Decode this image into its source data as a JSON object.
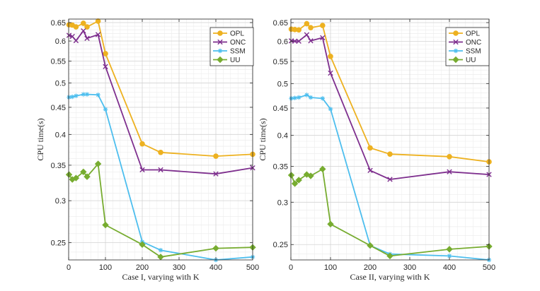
{
  "chart_data": [
    {
      "type": "line",
      "xlabel": "Case I, varying with K",
      "ylabel": "CPU time(s)",
      "y_scale": "log",
      "xlim": [
        0,
        500
      ],
      "ylim": [
        0.232,
        0.66
      ],
      "xticks": [
        "0",
        "100",
        "200",
        "300",
        "400",
        "500"
      ],
      "xtick_values": [
        0,
        100,
        200,
        300,
        400,
        500
      ],
      "yticks": [
        "0.25",
        "0.3",
        "0.35",
        "0.4",
        "0.45",
        "0.5",
        "0.55",
        "0.6",
        "0.65"
      ],
      "ytick_values": [
        0.25,
        0.3,
        0.35,
        0.4,
        0.45,
        0.5,
        0.55,
        0.6,
        0.65
      ],
      "grid": true,
      "legend_position": "top-right",
      "series": [
        {
          "name": "OPL",
          "color": "#EDB120",
          "marker": "circle",
          "x": [
            1,
            10,
            20,
            40,
            50,
            80,
            100,
            200,
            250,
            400,
            500
          ],
          "y": [
            0.644,
            0.643,
            0.638,
            0.648,
            0.638,
            0.654,
            0.568,
            0.384,
            0.37,
            0.364,
            0.367
          ]
        },
        {
          "name": "ONC",
          "color": "#7E2F8E",
          "marker": "x",
          "x": [
            1,
            10,
            20,
            40,
            50,
            80,
            100,
            200,
            250,
            400,
            500
          ],
          "y": [
            0.615,
            0.612,
            0.601,
            0.627,
            0.607,
            0.617,
            0.537,
            0.343,
            0.343,
            0.337,
            0.346
          ]
        },
        {
          "name": "SSM",
          "color": "#4DBEEE",
          "marker": "asterisk",
          "x": [
            1,
            10,
            20,
            40,
            50,
            80,
            100,
            200,
            250,
            400,
            500
          ],
          "y": [
            0.47,
            0.471,
            0.473,
            0.476,
            0.476,
            0.475,
            0.446,
            0.251,
            0.242,
            0.232,
            0.235
          ]
        },
        {
          "name": "UU",
          "color": "#77AC30",
          "marker": "diamond",
          "x": [
            1,
            10,
            20,
            40,
            50,
            80,
            100,
            200,
            250,
            400,
            500
          ],
          "y": [
            0.336,
            0.329,
            0.331,
            0.34,
            0.333,
            0.352,
            0.27,
            0.248,
            0.235,
            0.244,
            0.245
          ]
        }
      ]
    },
    {
      "type": "line",
      "xlabel": "Case II, varying with K",
      "ylabel": "CPU time(s)",
      "y_scale": "log",
      "xlim": [
        0,
        500
      ],
      "ylim": [
        0.234,
        0.66
      ],
      "xticks": [
        "0",
        "100",
        "200",
        "300",
        "400",
        "500"
      ],
      "xtick_values": [
        0,
        100,
        200,
        300,
        400,
        500
      ],
      "yticks": [
        "0.25",
        "0.3",
        "0.35",
        "0.4",
        "0.45",
        "0.5",
        "0.55",
        "0.6",
        "0.65"
      ],
      "ytick_values": [
        0.25,
        0.3,
        0.35,
        0.4,
        0.45,
        0.5,
        0.55,
        0.6,
        0.65
      ],
      "grid": true,
      "legend_position": "top-right",
      "series": [
        {
          "name": "OPL",
          "color": "#EDB120",
          "marker": "circle",
          "x": [
            1,
            10,
            20,
            40,
            50,
            80,
            100,
            200,
            250,
            400,
            500
          ],
          "y": [
            0.632,
            0.631,
            0.63,
            0.647,
            0.636,
            0.642,
            0.562,
            0.379,
            0.369,
            0.365,
            0.357
          ]
        },
        {
          "name": "ONC",
          "color": "#7E2F8E",
          "marker": "x",
          "x": [
            1,
            10,
            20,
            40,
            50,
            80,
            100,
            200,
            250,
            400,
            500
          ],
          "y": [
            0.601,
            0.6,
            0.6,
            0.617,
            0.601,
            0.609,
            0.523,
            0.344,
            0.331,
            0.342,
            0.338
          ]
        },
        {
          "name": "SSM",
          "color": "#4DBEEE",
          "marker": "asterisk",
          "x": [
            1,
            10,
            20,
            40,
            50,
            80,
            100,
            200,
            250,
            400,
            500
          ],
          "y": [
            0.469,
            0.47,
            0.471,
            0.476,
            0.471,
            0.469,
            0.448,
            0.249,
            0.24,
            0.238,
            0.234
          ]
        },
        {
          "name": "UU",
          "color": "#77AC30",
          "marker": "diamond",
          "x": [
            1,
            10,
            20,
            40,
            50,
            80,
            100,
            200,
            250,
            400,
            500
          ],
          "y": [
            0.337,
            0.325,
            0.33,
            0.338,
            0.336,
            0.346,
            0.273,
            0.249,
            0.238,
            0.245,
            0.248
          ]
        }
      ]
    }
  ]
}
